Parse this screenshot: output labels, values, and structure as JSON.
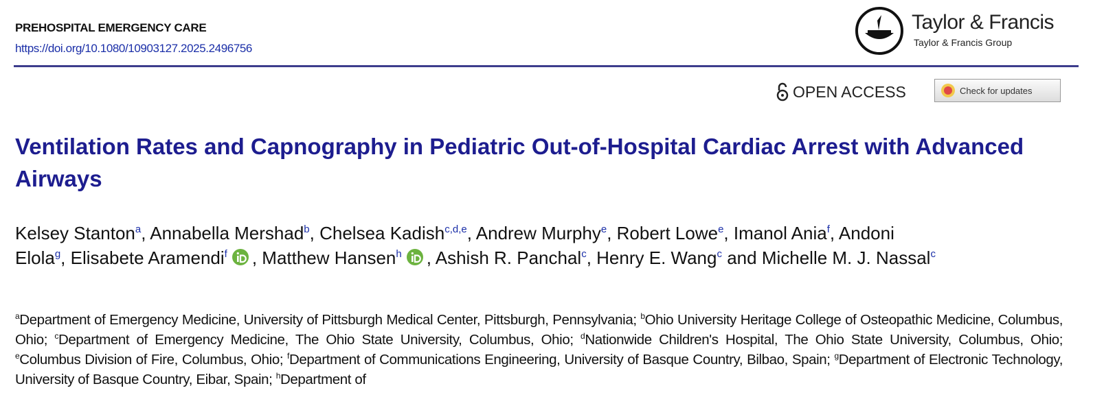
{
  "header": {
    "journal": "PREHOSPITAL EMERGENCY CARE",
    "doi": "https://doi.org/10.1080/10903127.2025.2496756",
    "publisher": "Taylor & Francis",
    "publisher_group": "Taylor & Francis Group",
    "open_access": "OPEN ACCESS",
    "check_updates": "Check for updates"
  },
  "title": "Ventilation Rates and Capnography in Pediatric Out-of-Hospital Cardiac Arrest with Advanced Airways",
  "authors": [
    {
      "name": "Kelsey Stanton",
      "sup": "a",
      "after": ", "
    },
    {
      "name": "Annabella Mershad",
      "sup": "b",
      "after": ", "
    },
    {
      "name": "Chelsea Kadish",
      "sup": "c,d,e",
      "after": ", "
    },
    {
      "name": "Andrew Murphy",
      "sup": "e",
      "after": ", "
    },
    {
      "name": "Robert Lowe",
      "sup": "e",
      "after": ", "
    },
    {
      "name": "Imanol Ania",
      "sup": "f",
      "after": ", "
    },
    {
      "name": "Andoni Elola",
      "sup": "g",
      "after": ", "
    },
    {
      "name": "Elisabete Aramendi",
      "sup": "f",
      "orcid": true,
      "after": ", "
    },
    {
      "name": "Matthew Hansen",
      "sup": "h",
      "orcid": true,
      "after": ", "
    },
    {
      "name": "Ashish R. Panchal",
      "sup": "c",
      "after": ", "
    },
    {
      "name": "Henry E. Wang",
      "sup": "c",
      "after": " and "
    },
    {
      "name": "Michelle M. J. Nassal",
      "sup": "c"
    }
  ],
  "affiliations": [
    {
      "mark": "a",
      "text": "Department of Emergency Medicine, University of Pittsburgh Medical Center, Pittsburgh, Pennsylvania;"
    },
    {
      "mark": "b",
      "text": "Ohio University Heritage College of Osteopathic Medicine, Columbus, Ohio;"
    },
    {
      "mark": "c",
      "text": "Department of Emergency Medicine, The Ohio State University, Columbus, Ohio;"
    },
    {
      "mark": "d",
      "text": "Nationwide Children's Hospital, The Ohio State University, Columbus, Ohio;"
    },
    {
      "mark": "e",
      "text": "Columbus Division of Fire, Columbus, Ohio;"
    },
    {
      "mark": "f",
      "text": "Department of Communications Engineering, University of Basque Country, Bilbao, Spain;"
    },
    {
      "mark": "g",
      "text": "Department of Electronic Technology, University of Basque Country, Eibar, Spain;"
    },
    {
      "mark": "h",
      "text": "Department of"
    }
  ]
}
